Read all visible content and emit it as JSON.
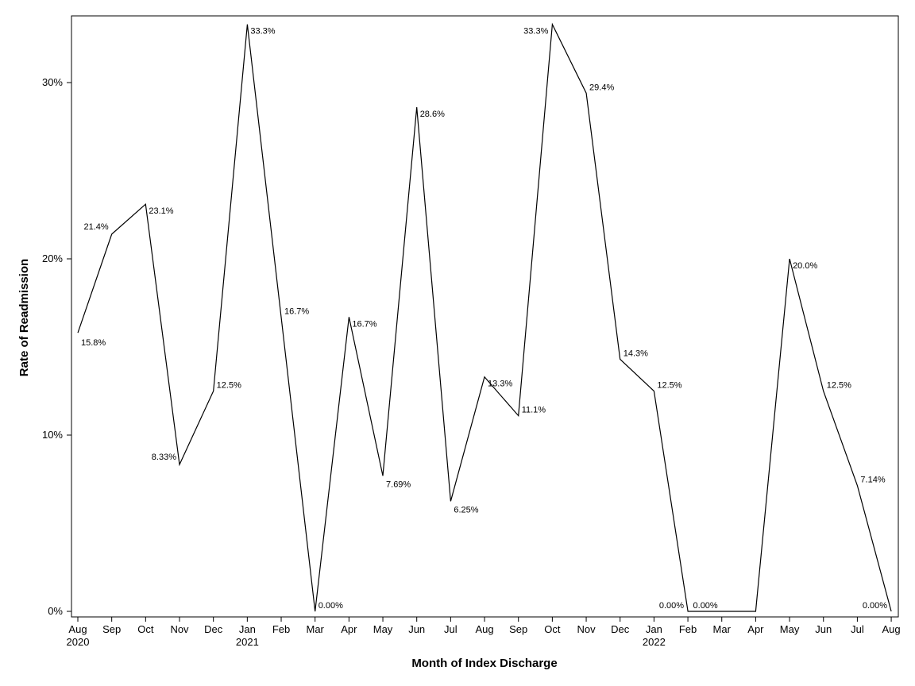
{
  "chart_data": {
    "type": "line",
    "xlabel": "Month of Index Discharge",
    "ylabel": "Rate of Readmission",
    "ylim": [
      0,
      0.335
    ],
    "yticks": [
      0,
      0.1,
      0.2,
      0.3
    ],
    "ytick_labels": [
      "0%",
      "10%",
      "20%",
      "30%"
    ],
    "grid": false,
    "legend": "none",
    "categories": [
      "Aug",
      "Sep",
      "Oct",
      "Nov",
      "Dec",
      "Jan",
      "Feb",
      "Mar",
      "Apr",
      "May",
      "Jun",
      "Jul",
      "Aug",
      "Sep",
      "Oct",
      "Nov",
      "Dec",
      "Jan",
      "Feb",
      "Mar",
      "Apr",
      "May",
      "Jun",
      "Jul",
      "Aug"
    ],
    "year_labels": [
      {
        "index": 0,
        "label": "2020"
      },
      {
        "index": 5,
        "label": "2021"
      },
      {
        "index": 17,
        "label": "2022"
      }
    ],
    "series": [
      {
        "values": [
          0.158,
          0.214,
          0.231,
          0.0833,
          0.125,
          0.333,
          0.167,
          0.0,
          0.167,
          0.0769,
          0.286,
          0.0625,
          0.133,
          0.111,
          0.333,
          0.294,
          0.143,
          0.125,
          0.0,
          0.0,
          0.0,
          0.2,
          0.125,
          0.0714,
          0.0
        ],
        "labels": [
          "15.8%",
          "21.4%",
          "23.1%",
          "8.33%",
          "12.5%",
          "33.3%",
          "16.7%",
          "0.00%",
          "16.7%",
          "7.69%",
          "28.6%",
          "6.25%",
          "13.3%",
          "11.1%",
          "33.3%",
          "29.4%",
          "14.3%",
          "12.5%",
          "0.00%",
          "0.00%",
          "",
          "20.0%",
          "12.5%",
          "7.14%",
          "0.00%"
        ],
        "color": "#000000"
      }
    ]
  }
}
